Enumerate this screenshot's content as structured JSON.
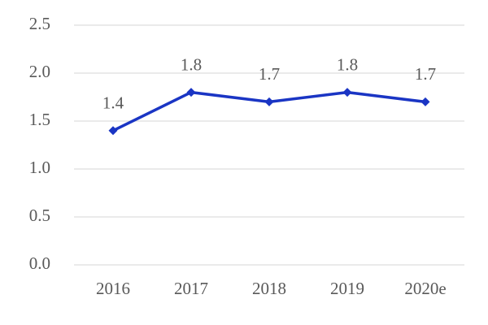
{
  "chart_data": {
    "type": "line",
    "categories": [
      "2016",
      "2017",
      "2018",
      "2019",
      "2020e"
    ],
    "values": [
      1.4,
      1.8,
      1.7,
      1.8,
      1.7
    ],
    "color": "#1a35c4",
    "ylim": [
      0,
      2.5
    ],
    "yticks": [
      {
        "value": 0,
        "label": "0.0"
      },
      0.5,
      {
        "value": 1,
        "label": "1.0"
      },
      1.5,
      {
        "value": 2,
        "label": "2.0"
      },
      2.5
    ],
    "grid": true
  }
}
